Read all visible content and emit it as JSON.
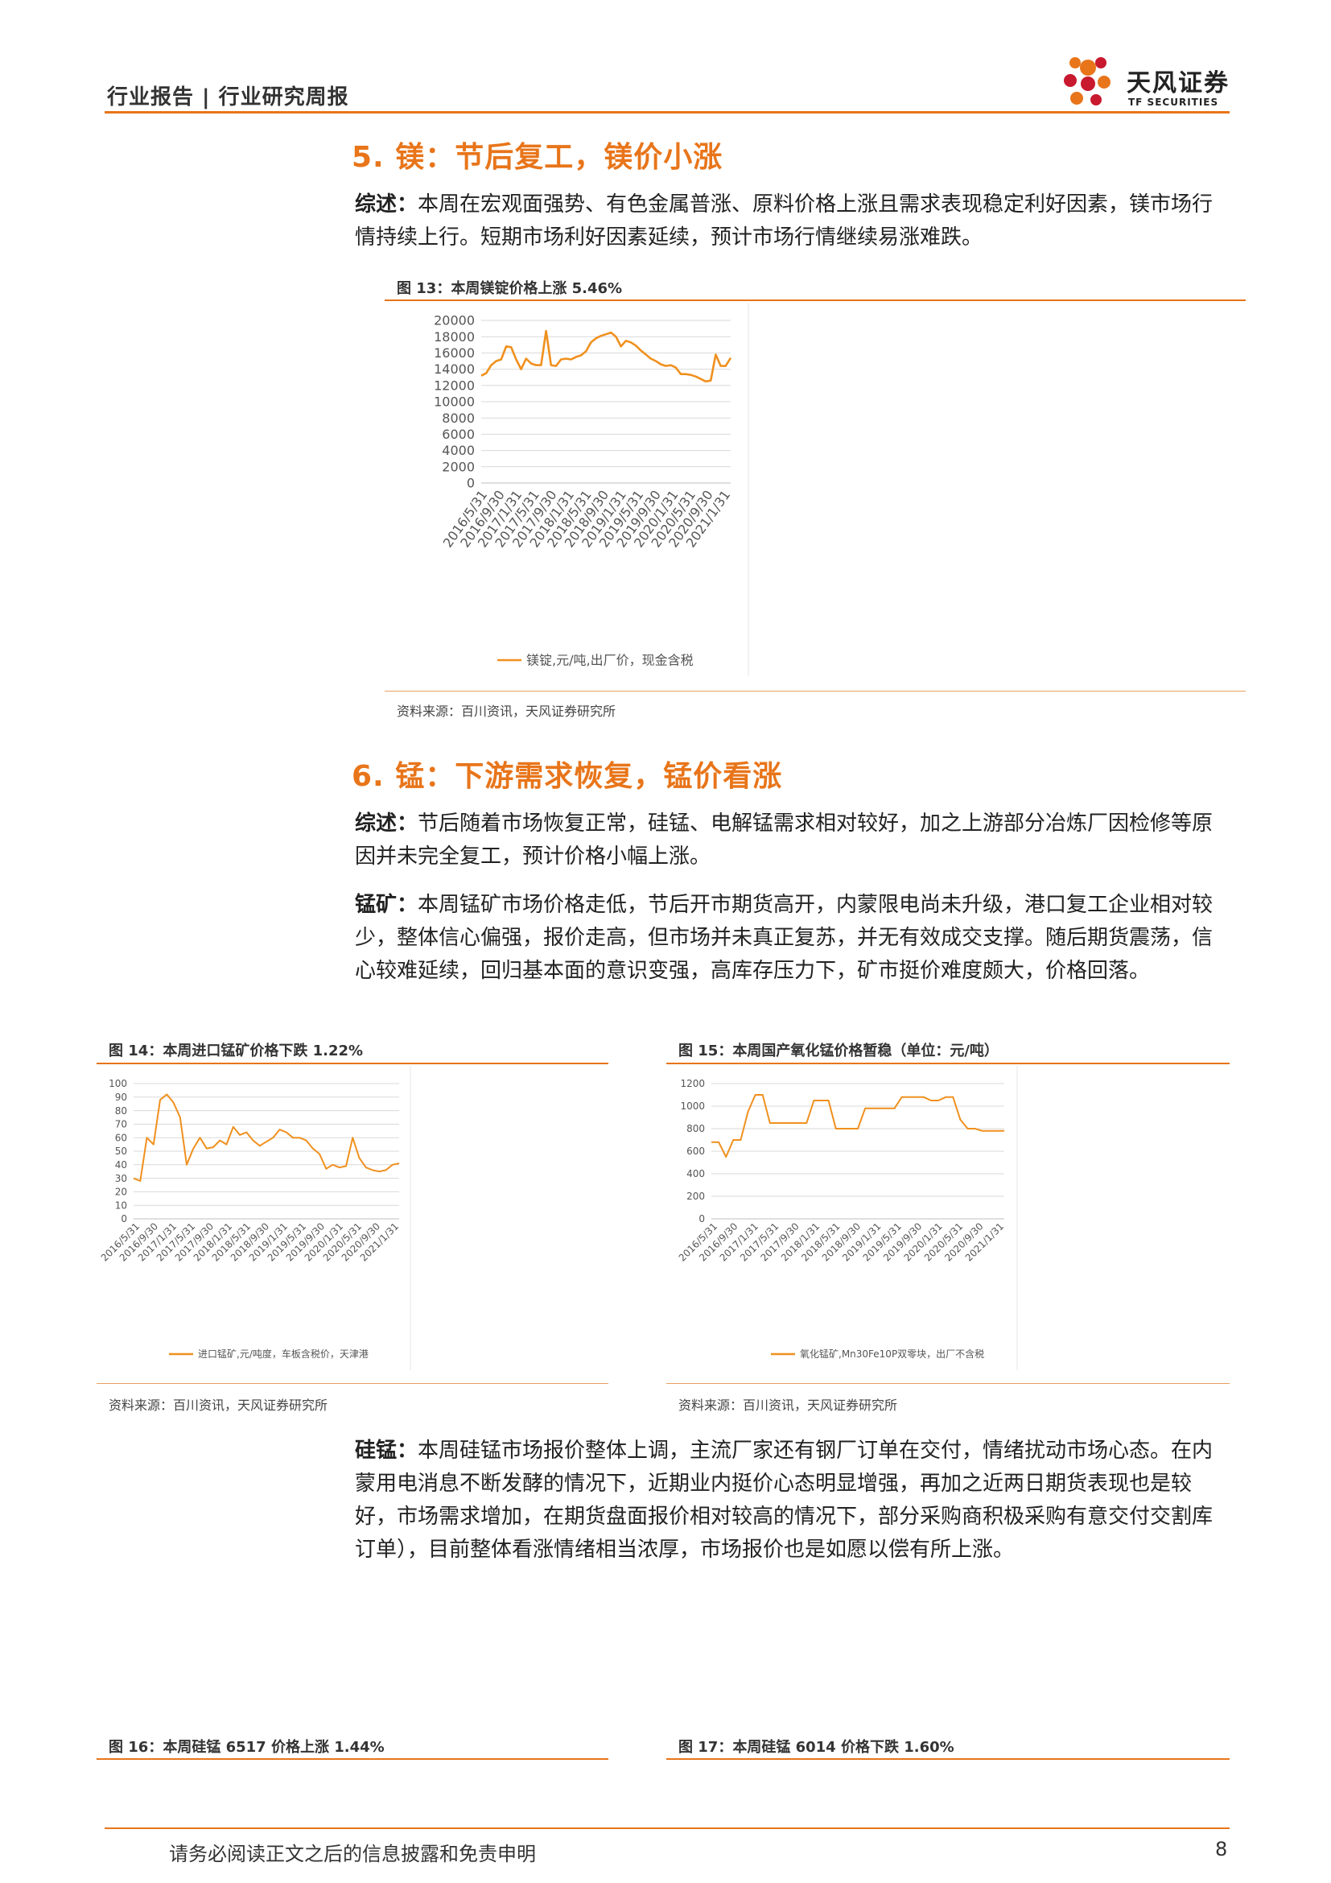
{
  "header": {
    "title": "行业报告 | 行业研究周报"
  },
  "logo": {
    "cn": "天风证券",
    "en": "TF SECURITIES"
  },
  "sections": {
    "s5": {
      "title": "5. 镁：节后复工，镁价小涨",
      "summary_label": "综述：",
      "summary": "本周在宏观面强势、有色金属普涨、原料价格上涨且需求表现稳定利好因素，镁市场行情持续上行。短期市场利好因素延续，预计市场行情继续易涨难跌。"
    },
    "s6": {
      "title": "6. 锰：下游需求恢复，锰价看涨",
      "summary_label": "综述：",
      "summary": "节后随着市场恢复正常，硅锰、电解锰需求相对较好，加之上游部分冶炼厂因检修等原因并未完全复工，预计价格小幅上涨。",
      "ore_label": "锰矿：",
      "ore": "本周锰矿市场价格走低，节后开市期货高开，内蒙限电尚未升级，港口复工企业相对较少，整体信心偏强，报价走高，但市场并未真正复苏，并无有效成交支撑。随后期货震荡，信心较难延续，回归基本面的意识变强，高库存压力下，矿市挺价难度颇大，价格回落。",
      "simn_label": "硅锰：",
      "simn": "本周硅锰市场报价整体上调，主流厂家还有钢厂订单在交付，情绪扰动市场心态。在内蒙用电消息不断发酵的情况下，近期业内挺价心态明显增强，再加之近两日期货表现也是较好，市场需求增加，在期货盘面报价相对较高的情况下，部分采购商积极采购有意交付交割库订单），目前整体看涨情绪相当浓厚，市场报价也是如愿以偿有所上涨。"
    }
  },
  "figures": {
    "f13": {
      "title": "图 13：本周镁锭价格上涨 5.46%",
      "source": "资料来源：百川资讯，天风证券研究所"
    },
    "f14": {
      "title": "图 14：本周进口锰矿价格下跌 1.22%",
      "source": "资料来源：百川资讯，天风证券研究所"
    },
    "f15": {
      "title": "图 15：本周国产氧化锰价格暂稳（单位：元/吨）",
      "source": "资料来源：百川资讯，天风证券研究所"
    },
    "f16": {
      "title": "图 16：本周硅锰 6517 价格上涨 1.44%"
    },
    "f17": {
      "title": "图 17：本周硅锰 6014 价格下跌 1.60%"
    }
  },
  "chart_data": [
    {
      "id": "mg",
      "type": "line",
      "color": "#f0901e",
      "ylim": [
        0,
        20000
      ],
      "yticks": [
        0,
        2000,
        4000,
        6000,
        8000,
        10000,
        12000,
        14000,
        16000,
        18000,
        20000
      ],
      "xticks": [
        "2016/5/31",
        "2016/9/30",
        "2017/1/31",
        "2017/5/31",
        "2017/9/30",
        "2018/1/31",
        "2018/5/31",
        "2018/9/30",
        "2019/1/31",
        "2019/5/31",
        "2019/9/30",
        "2020/1/31",
        "2020/5/31",
        "2020/9/30",
        "2021/1/31"
      ],
      "series": [
        {
          "name": "镁锭,元/吨,出厂价，现金含税",
          "values": [
            13200,
            13500,
            14500,
            15000,
            15200,
            16800,
            16700,
            15200,
            14000,
            15300,
            14700,
            14500,
            14500,
            18700,
            14500,
            14400,
            15200,
            15300,
            15200,
            15500,
            15700,
            16200,
            17300,
            17800,
            18100,
            18300,
            18500,
            18000,
            16800,
            17500,
            17300,
            16900,
            16300,
            15800,
            15300,
            15000,
            14600,
            14400,
            14500,
            14200,
            13400,
            13400,
            13300,
            13100,
            12800,
            12500,
            12600,
            15800,
            14400,
            14400,
            15400
          ]
        }
      ]
    },
    {
      "id": "mn-ore",
      "type": "line",
      "color": "#f0901e",
      "ylim": [
        0,
        100
      ],
      "yticks": [
        0,
        10,
        20,
        30,
        40,
        50,
        60,
        70,
        80,
        90,
        100
      ],
      "xticks": [
        "2016/5/31",
        "2016/9/30",
        "2017/1/31",
        "2017/5/31",
        "2017/9/30",
        "2018/1/31",
        "2018/5/31",
        "2018/9/30",
        "2019/1/31",
        "2019/5/31",
        "2019/9/30",
        "2020/1/31",
        "2020/5/31",
        "2020/9/30",
        "2021/1/31"
      ],
      "series": [
        {
          "name": "进口锰矿,元/吨度，车板含税价，天津港",
          "values": [
            30,
            28,
            60,
            55,
            88,
            92,
            86,
            75,
            40,
            52,
            60,
            52,
            53,
            58,
            55,
            68,
            62,
            64,
            58,
            54,
            57,
            60,
            66,
            64,
            60,
            60,
            58,
            52,
            48,
            37,
            40,
            38,
            39,
            60,
            45,
            38,
            36,
            35,
            36,
            40,
            41
          ]
        }
      ]
    },
    {
      "id": "mn-oxide",
      "type": "line",
      "color": "#f0901e",
      "ylim": [
        0,
        1200
      ],
      "yticks": [
        0,
        200,
        400,
        600,
        800,
        1000,
        1200
      ],
      "xticks": [
        "2016/5/31",
        "2016/9/30",
        "2017/1/31",
        "2017/5/31",
        "2017/9/30",
        "2018/1/31",
        "2018/5/31",
        "2018/9/30",
        "2019/1/31",
        "2019/5/31",
        "2019/9/30",
        "2020/1/31",
        "2020/5/31",
        "2020/9/30",
        "2021/1/31"
      ],
      "series": [
        {
          "name": "氧化锰矿,Mn30Fe10P双零块，出厂不含税",
          "values": [
            680,
            680,
            550,
            700,
            700,
            950,
            1100,
            1100,
            850,
            850,
            850,
            850,
            850,
            850,
            1050,
            1050,
            1050,
            800,
            800,
            800,
            800,
            980,
            980,
            980,
            980,
            980,
            1080,
            1080,
            1080,
            1080,
            1050,
            1050,
            1080,
            1080,
            880,
            800,
            800,
            780,
            780,
            780,
            780
          ]
        }
      ]
    }
  ],
  "footer": {
    "disclaimer": "请务必阅读正文之后的信息披露和免责申明",
    "page": "8"
  }
}
